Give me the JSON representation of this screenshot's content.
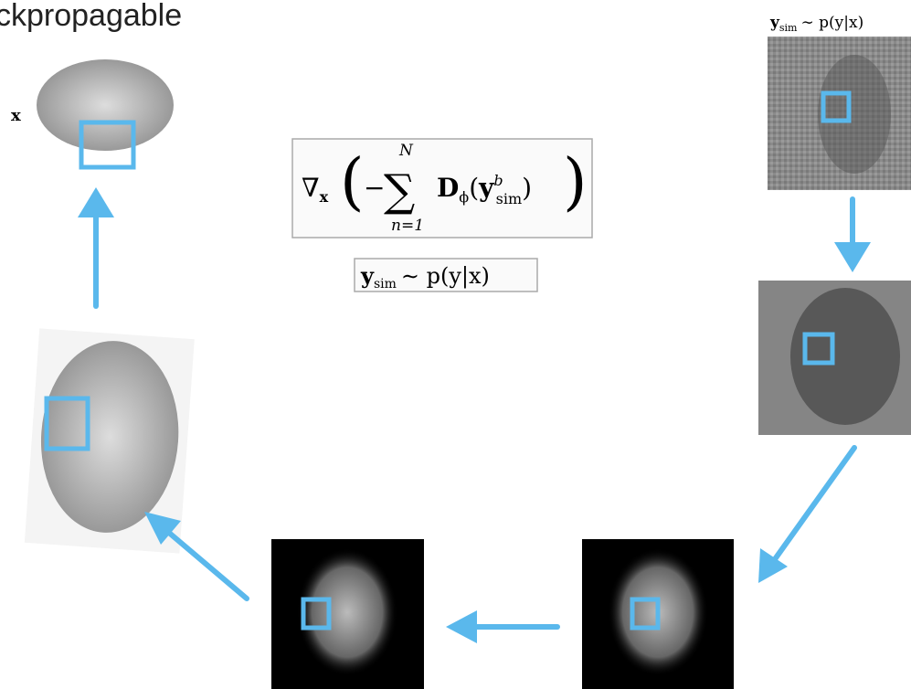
{
  "header": {
    "title": "ckpropagable"
  },
  "labels": {
    "x": "x",
    "sample": {
      "y": "y",
      "sub": "sim",
      "rest": "∼ p(y|x)"
    }
  },
  "formula": {
    "nabla": "∇",
    "nabla_sub": "x",
    "minus": "−",
    "sum": "∑",
    "upper": "N",
    "lower": "n=1",
    "func": "D",
    "func_sub": "ϕ",
    "open": "(",
    "arg": "y",
    "arg_sup": "b",
    "arg_sub": "sim",
    "close": ")"
  },
  "sampling": {
    "y": "y",
    "sub": "sim",
    "rest": "∼ p(y|x)"
  }
}
